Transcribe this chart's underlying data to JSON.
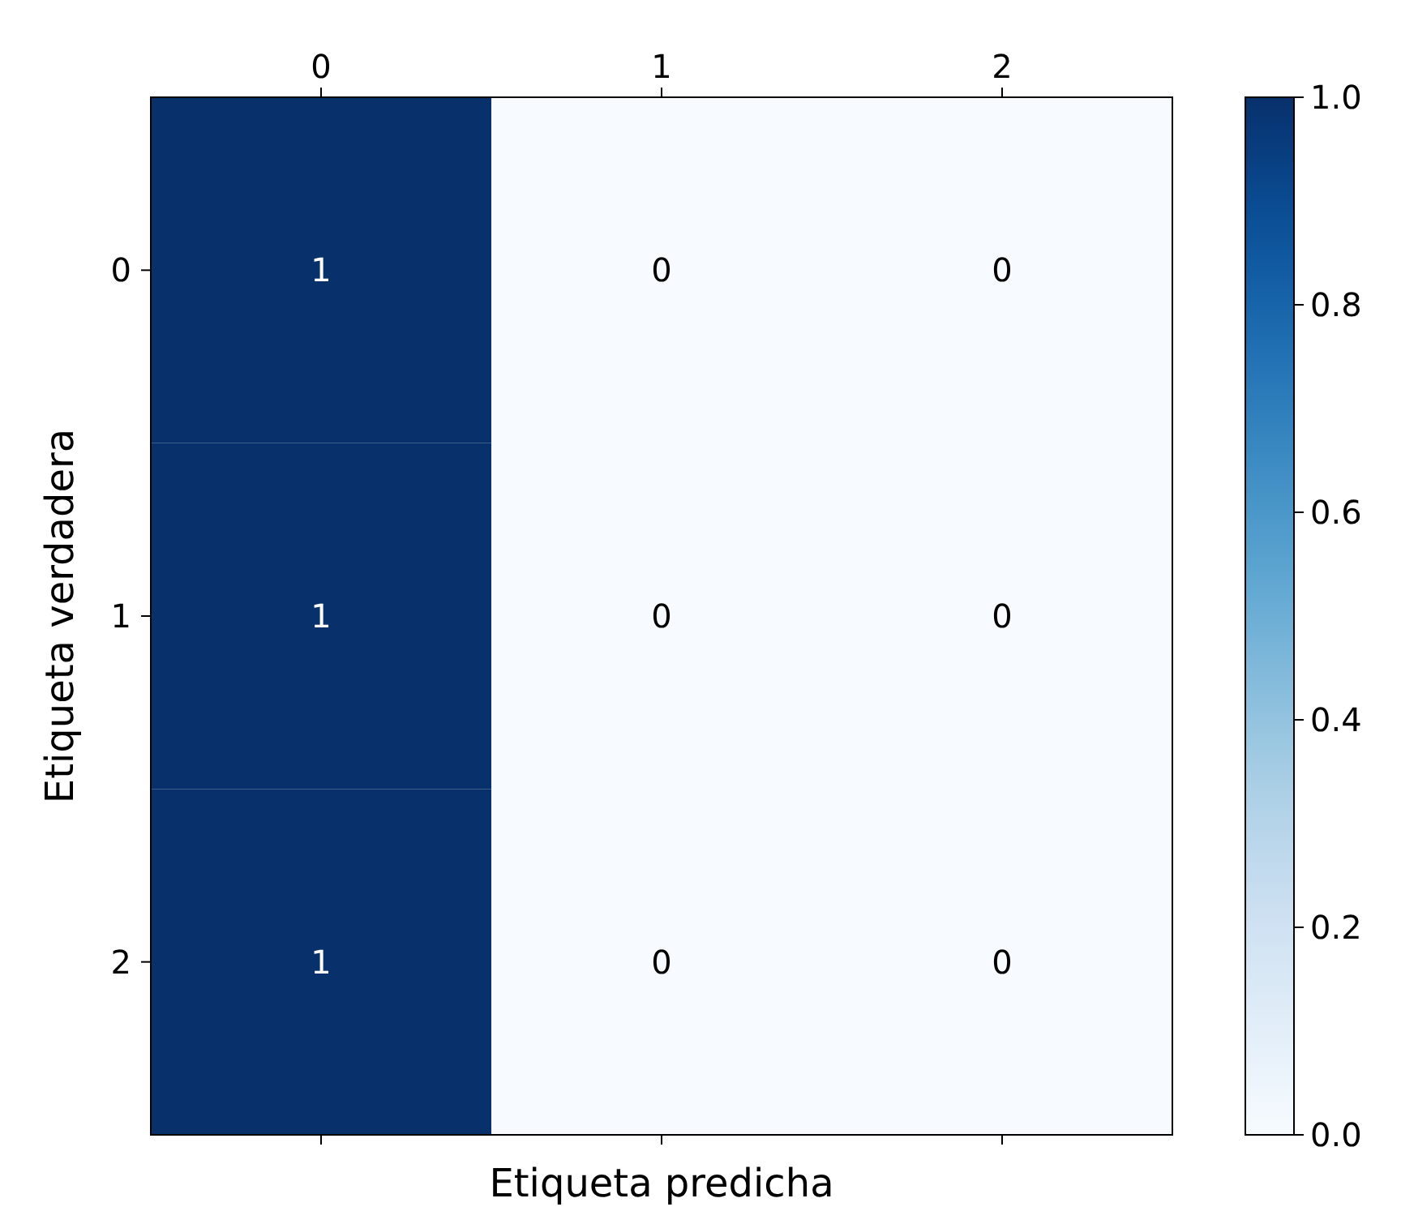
{
  "chart_data": {
    "type": "heatmap",
    "xlabel": "Etiqueta predicha",
    "ylabel": "Etiqueta verdadera",
    "categories": [
      "0",
      "1",
      "2"
    ],
    "y_categories": [
      "0",
      "1",
      "2"
    ],
    "cells": [
      [
        1,
        0,
        0
      ],
      [
        1,
        0,
        0
      ],
      [
        1,
        0,
        0
      ]
    ],
    "data_labels": true,
    "clim": [
      0,
      1
    ],
    "cticks": [
      {
        "value": 0,
        "label": "0.0"
      },
      {
        "value": 0.2,
        "label": "0.2"
      },
      {
        "value": 0.4,
        "label": "0.4"
      },
      {
        "value": 0.6,
        "label": "0.6"
      },
      {
        "value": 0.8,
        "label": "0.8"
      },
      {
        "value": 1,
        "label": "1.0"
      }
    ]
  }
}
